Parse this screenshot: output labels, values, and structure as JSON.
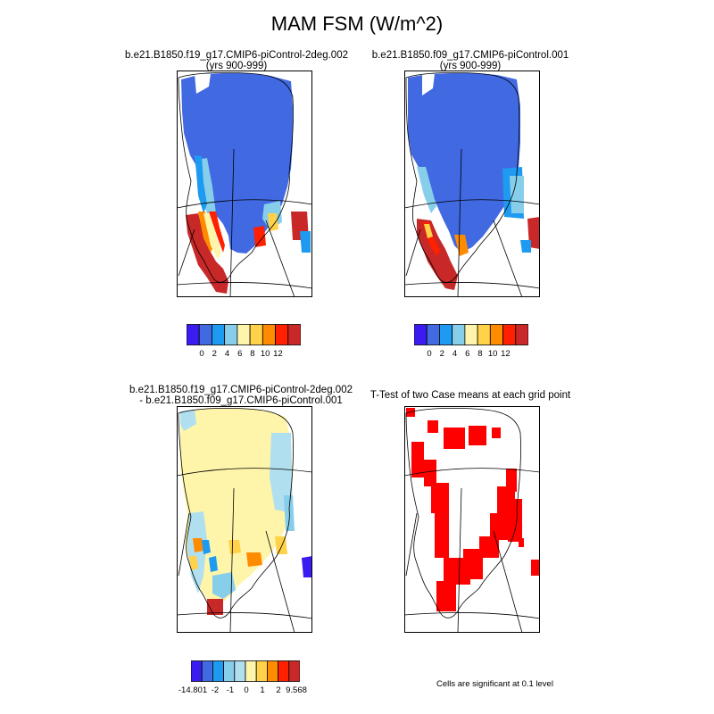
{
  "figure": {
    "title": "MAM FSM (W/m^2)"
  },
  "panels": [
    {
      "title_line1": "b.e21.B1850.f19_g17.CMIP6-piControl-2deg.002",
      "title_line2": "(yrs 900-999)"
    },
    {
      "title_line1": "b.e21.B1850.f09_g17.CMIP6-piControl.001",
      "title_line2": "(yrs 900-999)"
    },
    {
      "title_line1": "b.e21.B1850.f19_g17.CMIP6-piControl-2deg.002",
      "title_line2": "- b.e21.B1850.f09_g17.CMIP6-piControl.001"
    },
    {
      "title_line1": "T-Test of two Case means at each grid point",
      "title_line2": ""
    }
  ],
  "colorbars": {
    "case": {
      "colors": [
        "#3b1cf0",
        "#4169e1",
        "#1e9bf0",
        "#87ceeb",
        "#fff5aa",
        "#ffd24a",
        "#ff8c00",
        "#ff2000",
        "#c82828"
      ],
      "tick_labels": [
        "0",
        "2",
        "4",
        "6",
        "8",
        "10",
        "12"
      ]
    },
    "diff": {
      "colors": [
        "#3b1cf0",
        "#4169e1",
        "#1e9bf0",
        "#87ceeb",
        "#b0dff0",
        "#fff5aa",
        "#ffd24a",
        "#ff8c00",
        "#ff2000",
        "#c82828"
      ],
      "tick_labels": [
        "-14.801",
        "-2",
        "-1",
        "0",
        "1",
        "2",
        "9.568"
      ]
    }
  },
  "significance": {
    "color": "#ff0000",
    "note": "Cells are significant at 0.1 level"
  }
}
